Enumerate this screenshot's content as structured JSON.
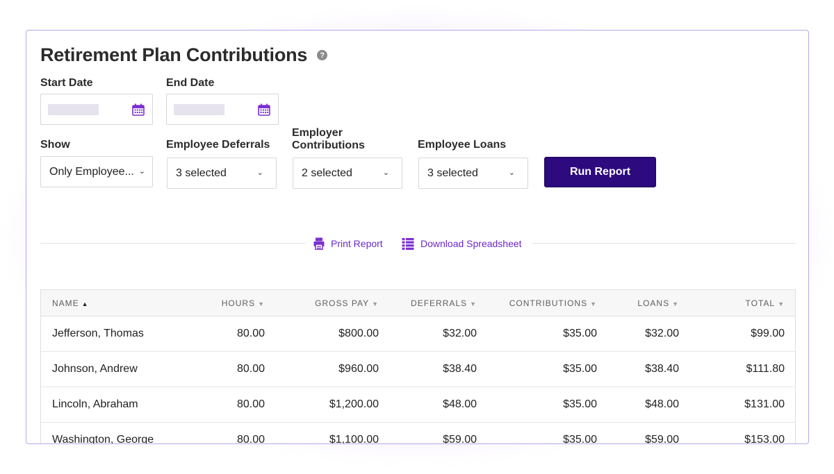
{
  "page": {
    "title": "Retirement Plan Contributions",
    "help_symbol": "?"
  },
  "filters": {
    "start_date_label": "Start Date",
    "end_date_label": "End Date",
    "show_label": "Show",
    "show_value": "Only Employee...",
    "employee_deferrals_label": "Employee Deferrals",
    "employee_deferrals_value": "3 selected",
    "employer_contributions_label_1": "Employer",
    "employer_contributions_label_2": "Contributions",
    "employer_contributions_value": "2 selected",
    "employee_loans_label": "Employee Loans",
    "employee_loans_value": "3 selected",
    "run_report_label": "Run Report"
  },
  "actions": {
    "print_label": "Print Report",
    "download_label": "Download Spreadsheet"
  },
  "table": {
    "headers": {
      "name": "NAME",
      "hours": "HOURS",
      "gross_pay": "GROSS PAY",
      "deferrals": "DEFERRALS",
      "contributions": "CONTRIBUTIONS",
      "loans": "LOANS",
      "total": "TOTAL"
    },
    "rows": [
      {
        "name": "Jefferson, Thomas",
        "hours": "80.00",
        "gross_pay": "$800.00",
        "deferrals": "$32.00",
        "contributions": "$35.00",
        "loans": "$32.00",
        "total": "$99.00"
      },
      {
        "name": "Johnson, Andrew",
        "hours": "80.00",
        "gross_pay": "$960.00",
        "deferrals": "$38.40",
        "contributions": "$35.00",
        "loans": "$38.40",
        "total": "$111.80"
      },
      {
        "name": "Lincoln, Abraham",
        "hours": "80.00",
        "gross_pay": "$1,200.00",
        "deferrals": "$48.00",
        "contributions": "$35.00",
        "loans": "$48.00",
        "total": "$131.00"
      },
      {
        "name": "Washington, George",
        "hours": "80.00",
        "gross_pay": "$1,100.00",
        "deferrals": "$59.00",
        "contributions": "$35.00",
        "loans": "$59.00",
        "total": "$153.00"
      }
    ]
  },
  "colors": {
    "accent": "#6b29c7",
    "button": "#2d0a7d",
    "border": "#b9a6e8"
  },
  "icons": {
    "help": "help-icon",
    "calendar": "calendar-icon",
    "print": "printer-icon",
    "download": "spreadsheet-icon",
    "chevron": "chevron-down-icon",
    "sort_asc": "sort-ascending-icon",
    "sort_desc": "sort-descending-icon"
  }
}
